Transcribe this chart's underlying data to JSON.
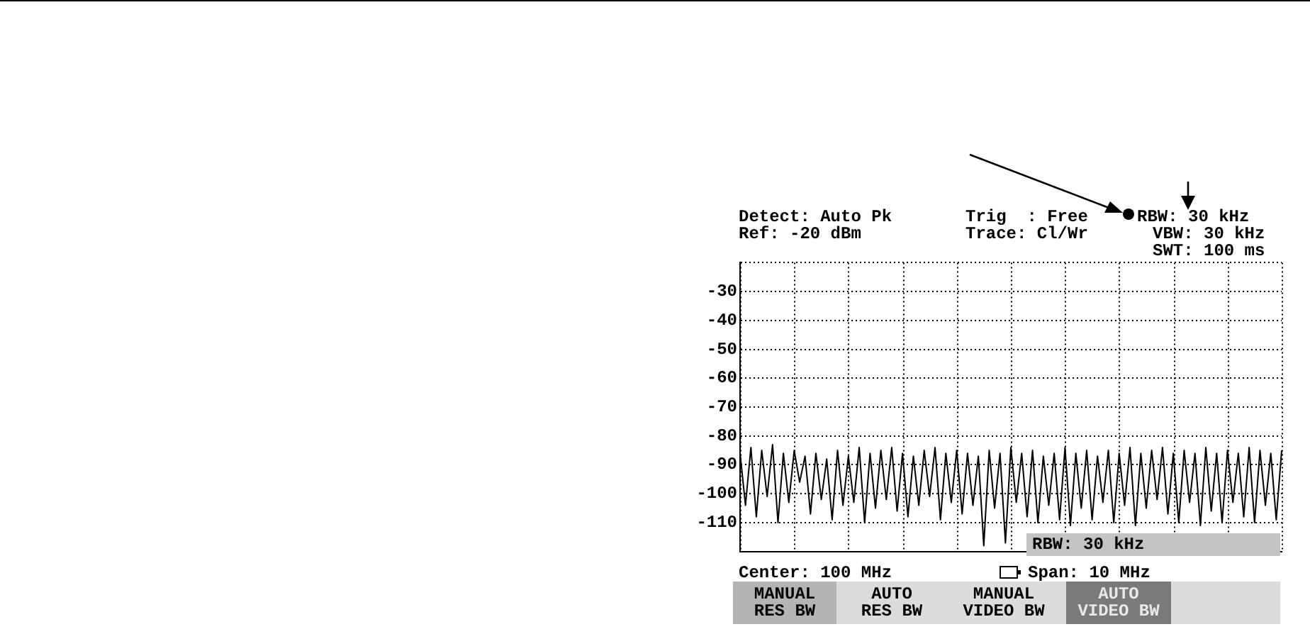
{
  "chart_data": {
    "type": "line",
    "categories": [
      null,
      null,
      null,
      null,
      null,
      null,
      null,
      null,
      null,
      null,
      null,
      null,
      null,
      null,
      null,
      null,
      null,
      null,
      null,
      null,
      null,
      null,
      null,
      null,
      null,
      null,
      null,
      null,
      null,
      null,
      null,
      null,
      null,
      null,
      null,
      null,
      null,
      null,
      null,
      null,
      null,
      null,
      null,
      null,
      null,
      null,
      null,
      null,
      null,
      null,
      null,
      null,
      null,
      null,
      null,
      null,
      null,
      null,
      null,
      null,
      null,
      null,
      null,
      null,
      null,
      null,
      null,
      null,
      null,
      null,
      null,
      null,
      null,
      null,
      null,
      null,
      null,
      null,
      null,
      null,
      null,
      null,
      null,
      null,
      null,
      null,
      null,
      null,
      null,
      null,
      null,
      null,
      null,
      null,
      null,
      null,
      null,
      null,
      null,
      null,
      null
    ],
    "series": [
      {
        "color": "#000000",
        "values": [
          -86,
          -104,
          -84,
          -108,
          -85,
          -101,
          -83,
          -110,
          -86,
          -103,
          -85,
          -96,
          -87,
          -107,
          -86,
          -102,
          -88,
          -109,
          -85,
          -104,
          -87,
          -103,
          -84,
          -110,
          -86,
          -105,
          -85,
          -102,
          -84,
          -106,
          -86,
          -108,
          -87,
          -104,
          -85,
          -101,
          -84,
          -109,
          -86,
          -103,
          -85,
          -107,
          -86,
          -104,
          -87,
          -118,
          -85,
          -105,
          -86,
          -117,
          -84,
          -103,
          -86,
          -108,
          -85,
          -110,
          -87,
          -104,
          -86,
          -109,
          -84,
          -111,
          -86,
          -105,
          -85,
          -109,
          -87,
          -103,
          -85,
          -110,
          -86,
          -104,
          -84,
          -111,
          -86,
          -105,
          -85,
          -102,
          -84,
          -107,
          -86,
          -110,
          -85,
          -103,
          -86,
          -111,
          -84,
          -106,
          -86,
          -110,
          -85,
          -103,
          -86,
          -108,
          -84,
          -110,
          -85,
          -104,
          -86,
          -109,
          -85
        ]
      }
    ],
    "ylim": [
      -120,
      -20
    ],
    "yticks": [
      {
        "value": -120,
        "label": null
      },
      -110,
      -100,
      -90,
      -80,
      -70,
      -60,
      -50,
      -40,
      -30,
      {
        "value": -20,
        "label": null
      }
    ],
    "tick_labels": "y",
    "grid": true,
    "legend": false,
    "marker": "none",
    "line_style": "solid",
    "annotations": [
      "Detect: Auto Pk",
      "Ref: -20 dBm",
      "Trig  : Free",
      "Trace: Cl/Wr",
      "RBW: 30 kHz",
      "VBW: 30 kHz",
      "SWT: 100 ms",
      "RBW: 30 kHz",
      "Center: 100 MHz",
      "Span: 10 MHz",
      "MANUAL\nRES BW",
      "AUTO\nRES BW",
      "MANUAL\nVIDEO BW",
      "AUTO\nVIDEO BW"
    ]
  }
}
